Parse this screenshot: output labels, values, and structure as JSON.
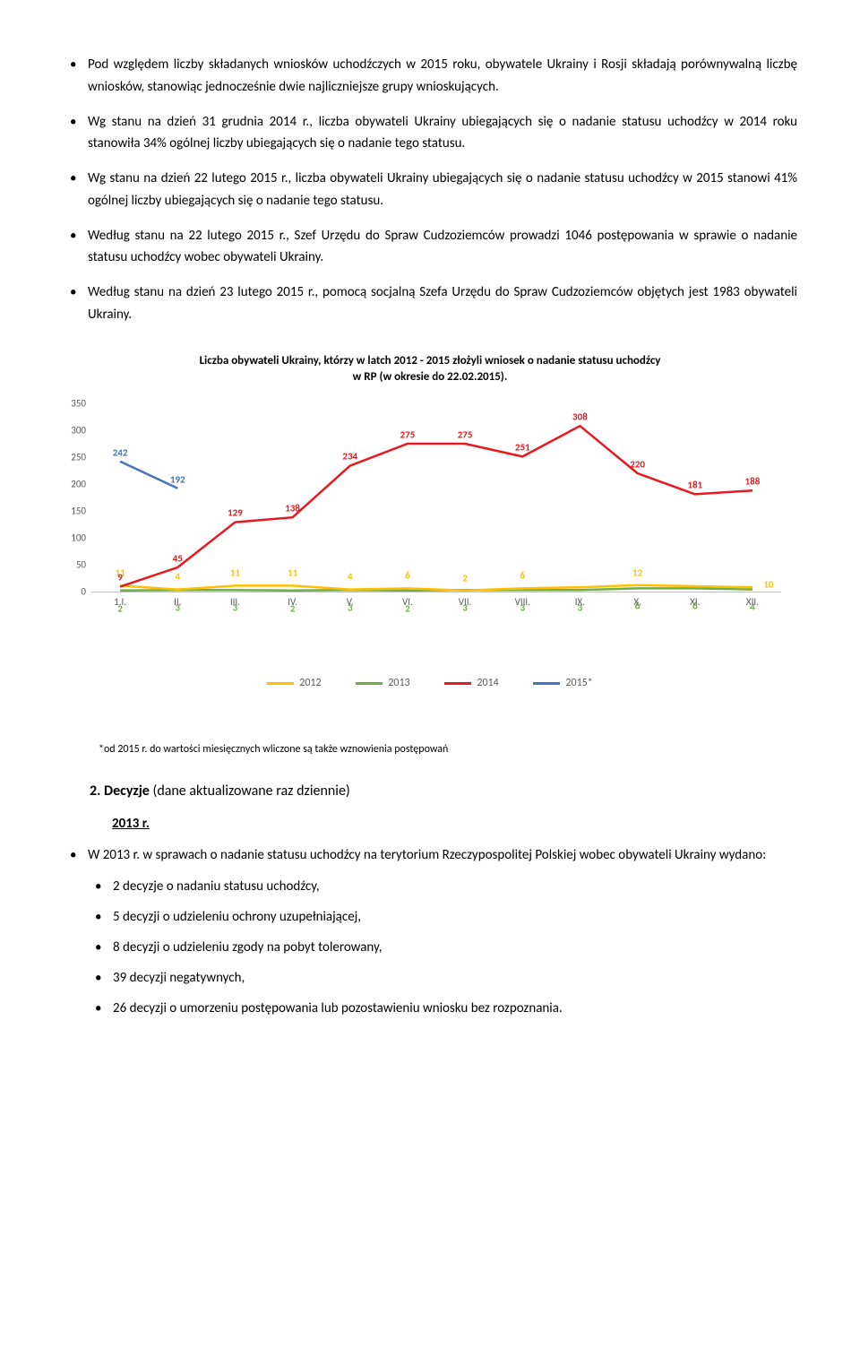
{
  "top_bullets": [
    "Pod względem liczby składanych wniosków uchodźczych w 2015 roku, obywatele Ukrainy i Rosji składają porównywalną liczbę wniosków, stanowiąc jednocześnie dwie najliczniejsze grupy wnioskujących.",
    "Wg stanu na dzień 31 grudnia 2014 r., liczba obywateli Ukrainy ubiegających się o nadanie statusu uchodźcy w 2014 roku stanowiła 34% ogólnej liczby ubiegających się o nadanie tego statusu.",
    "Wg stanu na dzień 22 lutego 2015 r., liczba obywateli Ukrainy ubiegających się o nadanie statusu uchodźcy w 2015 stanowi 41% ogólnej liczby ubiegających się o nadanie tego statusu.",
    "Według stanu na 22 lutego 2015 r., Szef Urzędu do Spraw Cudzoziemców prowadzi 1046 postępowania w sprawie o nadanie statusu uchodźcy wobec obywateli Ukrainy.",
    "Według stanu na dzień 23 lutego 2015 r., pomocą socjalną Szefa Urzędu do Spraw Cudzoziemców objętych jest 1983 obywateli Ukrainy."
  ],
  "chart": {
    "title_line1": "Liczba obywateli Ukrainy, którzy  w latch 2012 - 2015 złożyli wniosek o nadanie statusu uchodźcy",
    "title_line2": "w RP (w okresie do 22.02.2015).",
    "y_ticks": [
      0,
      50,
      100,
      150,
      200,
      250,
      300,
      350
    ],
    "y_max": 350,
    "x_labels": [
      "1.I.",
      "II.",
      "III.",
      "IV.",
      "V.",
      "VI.",
      "VII.",
      "VIII.",
      "IX.",
      "X.",
      "XI.",
      "XII."
    ],
    "series": {
      "s2012": {
        "label": "2012",
        "color": "#ffc000",
        "values": [
          11,
          4,
          11,
          11,
          4,
          6,
          2,
          6,
          null,
          12,
          null,
          null
        ],
        "show_labels": [
          true,
          true,
          true,
          true,
          true,
          true,
          true,
          true,
          false,
          true,
          false,
          false
        ],
        "line_values": [
          11,
          4,
          11,
          11,
          4,
          6,
          2,
          6,
          8,
          12,
          10,
          8
        ]
      },
      "s2013": {
        "label": "2013",
        "color": "#70ad47",
        "values": [
          2,
          3,
          3,
          2,
          3,
          2,
          3,
          3,
          3,
          6,
          6,
          4
        ],
        "show_labels": [
          true,
          true,
          true,
          true,
          true,
          true,
          true,
          true,
          true,
          true,
          true,
          true
        ],
        "line_values": [
          2,
          3,
          3,
          2,
          3,
          2,
          3,
          3,
          3,
          6,
          6,
          4
        ]
      },
      "s2014": {
        "label": "2014",
        "color": "#e7191f",
        "values": [
          9,
          45,
          129,
          138,
          234,
          275,
          275,
          251,
          308,
          220,
          181,
          188
        ],
        "show_labels": [
          true,
          true,
          true,
          true,
          true,
          true,
          true,
          true,
          true,
          true,
          true,
          true
        ],
        "line_values": [
          9,
          45,
          129,
          138,
          234,
          275,
          275,
          251,
          308,
          220,
          181,
          188
        ]
      },
      "s2015": {
        "label": "2015*",
        "color": "#4472c4",
        "values": [
          242,
          192
        ],
        "show_labels": [
          true,
          true
        ],
        "line_values": [
          242,
          192
        ]
      }
    },
    "footnote": "*od 2015 r. do wartości miesięcznych wliczone są także wznowienia postępowań",
    "extra_label_10": "10",
    "extra_label_10_color": "#ffc000"
  },
  "section2": {
    "heading_num": "2.",
    "heading_bold": "Decyzje",
    "heading_rest": " (dane aktualizowane raz dziennie)",
    "year_label": "2013 r.",
    "intro": "W 2013 r. w sprawach o nadanie statusu uchodźcy na terytorium Rzeczypospolitej Polskiej wobec obywateli Ukrainy wydano:",
    "items": [
      "2 decyzje o nadaniu statusu uchodźcy,",
      "5 decyzji o udzieleniu ochrony uzupełniającej,",
      "8 decyzji o udzieleniu zgody na pobyt tolerowany,",
      "39 decyzji negatywnych,",
      "26 decyzji o umorzeniu postępowania lub pozostawieniu wniosku bez rozpoznania."
    ]
  }
}
